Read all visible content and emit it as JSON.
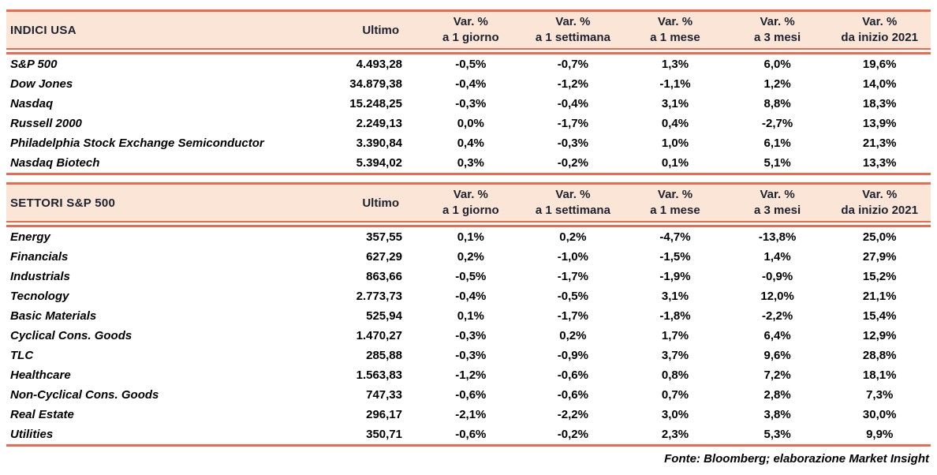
{
  "colors": {
    "accent_border": "#EE6A4F",
    "header_background": "#FBE5D6",
    "header_text": "#1C2230",
    "body_text": "#000000"
  },
  "column_headers": {
    "ultimo": "Ultimo",
    "variations": [
      {
        "top": "Var. %",
        "bottom": "a 1 giorno"
      },
      {
        "top": "Var. %",
        "bottom": "a 1 settimana"
      },
      {
        "top": "Var. %",
        "bottom": "a 1 mese"
      },
      {
        "top": "Var. %",
        "bottom": "a 3 mesi"
      },
      {
        "top": "Var. %",
        "bottom": "da inizio 2021"
      }
    ]
  },
  "chart_data": [
    {
      "type": "table",
      "title": "INDICI USA",
      "columns": [
        "INDICI USA",
        "Ultimo",
        "Var. % a 1 giorno",
        "Var. % a 1 settimana",
        "Var. % a 1 mese",
        "Var. % a 3 mesi",
        "Var. % da inizio 2021"
      ],
      "rows": [
        {
          "name": "S&P 500",
          "ultimo": "4.493,28",
          "vars": [
            "-0,5%",
            "-0,7%",
            "1,3%",
            "6,0%",
            "19,6%"
          ]
        },
        {
          "name": "Dow Jones",
          "ultimo": "34.879,38",
          "vars": [
            "-0,4%",
            "-1,2%",
            "-1,1%",
            "1,2%",
            "14,0%"
          ]
        },
        {
          "name": "Nasdaq",
          "ultimo": "15.248,25",
          "vars": [
            "-0,3%",
            "-0,4%",
            "3,1%",
            "8,8%",
            "18,3%"
          ]
        },
        {
          "name": "Russell 2000",
          "ultimo": "2.249,13",
          "vars": [
            "0,0%",
            "-1,7%",
            "0,4%",
            "-2,7%",
            "13,9%"
          ]
        },
        {
          "name": "Philadelphia Stock Exchange Semiconductor",
          "ultimo": "3.390,84",
          "vars": [
            "0,4%",
            "-0,3%",
            "1,0%",
            "6,1%",
            "21,3%"
          ]
        },
        {
          "name": "Nasdaq Biotech",
          "ultimo": "5.394,02",
          "vars": [
            "0,3%",
            "-0,2%",
            "0,1%",
            "5,1%",
            "13,3%"
          ]
        }
      ]
    },
    {
      "type": "table",
      "title": "SETTORI S&P 500",
      "columns": [
        "SETTORI S&P 500",
        "Ultimo",
        "Var. % a 1 giorno",
        "Var. % a 1 settimana",
        "Var. % a 1 mese",
        "Var. % a 3 mesi",
        "Var. % da inizio 2021"
      ],
      "rows": [
        {
          "name": "Energy",
          "ultimo": "357,55",
          "vars": [
            "0,1%",
            "0,2%",
            "-4,7%",
            "-13,8%",
            "25,0%"
          ]
        },
        {
          "name": "Financials",
          "ultimo": "627,29",
          "vars": [
            "0,2%",
            "-1,0%",
            "-1,5%",
            "1,4%",
            "27,9%"
          ]
        },
        {
          "name": "Industrials",
          "ultimo": "863,66",
          "vars": [
            "-0,5%",
            "-1,7%",
            "-1,9%",
            "-0,9%",
            "15,2%"
          ]
        },
        {
          "name": "Tecnology",
          "ultimo": "2.773,73",
          "vars": [
            "-0,4%",
            "-0,5%",
            "3,1%",
            "12,0%",
            "21,1%"
          ]
        },
        {
          "name": "Basic Materials",
          "ultimo": "525,94",
          "vars": [
            "0,1%",
            "-1,7%",
            "-1,8%",
            "-2,2%",
            "15,4%"
          ]
        },
        {
          "name": "Cyclical Cons. Goods",
          "ultimo": "1.470,27",
          "vars": [
            "-0,3%",
            "0,2%",
            "1,7%",
            "6,4%",
            "12,9%"
          ]
        },
        {
          "name": "TLC",
          "ultimo": "285,88",
          "vars": [
            "-0,3%",
            "-0,9%",
            "3,7%",
            "9,6%",
            "28,8%"
          ]
        },
        {
          "name": "Healthcare",
          "ultimo": "1.563,83",
          "vars": [
            "-1,2%",
            "-0,6%",
            "0,8%",
            "7,2%",
            "18,1%"
          ]
        },
        {
          "name": "Non-Cyclical Cons. Goods",
          "ultimo": "747,33",
          "vars": [
            "-0,6%",
            "-0,6%",
            "0,7%",
            "2,8%",
            "7,3%"
          ]
        },
        {
          "name": "Real Estate",
          "ultimo": "296,17",
          "vars": [
            "-2,1%",
            "-2,2%",
            "3,0%",
            "3,8%",
            "30,0%"
          ]
        },
        {
          "name": "Utilities",
          "ultimo": "350,71",
          "vars": [
            "-0,6%",
            "-0,2%",
            "2,3%",
            "5,3%",
            "9,9%"
          ]
        }
      ]
    }
  ],
  "footer": {
    "source_note": "Fonte: Bloomberg; elaborazione Market Insight"
  }
}
